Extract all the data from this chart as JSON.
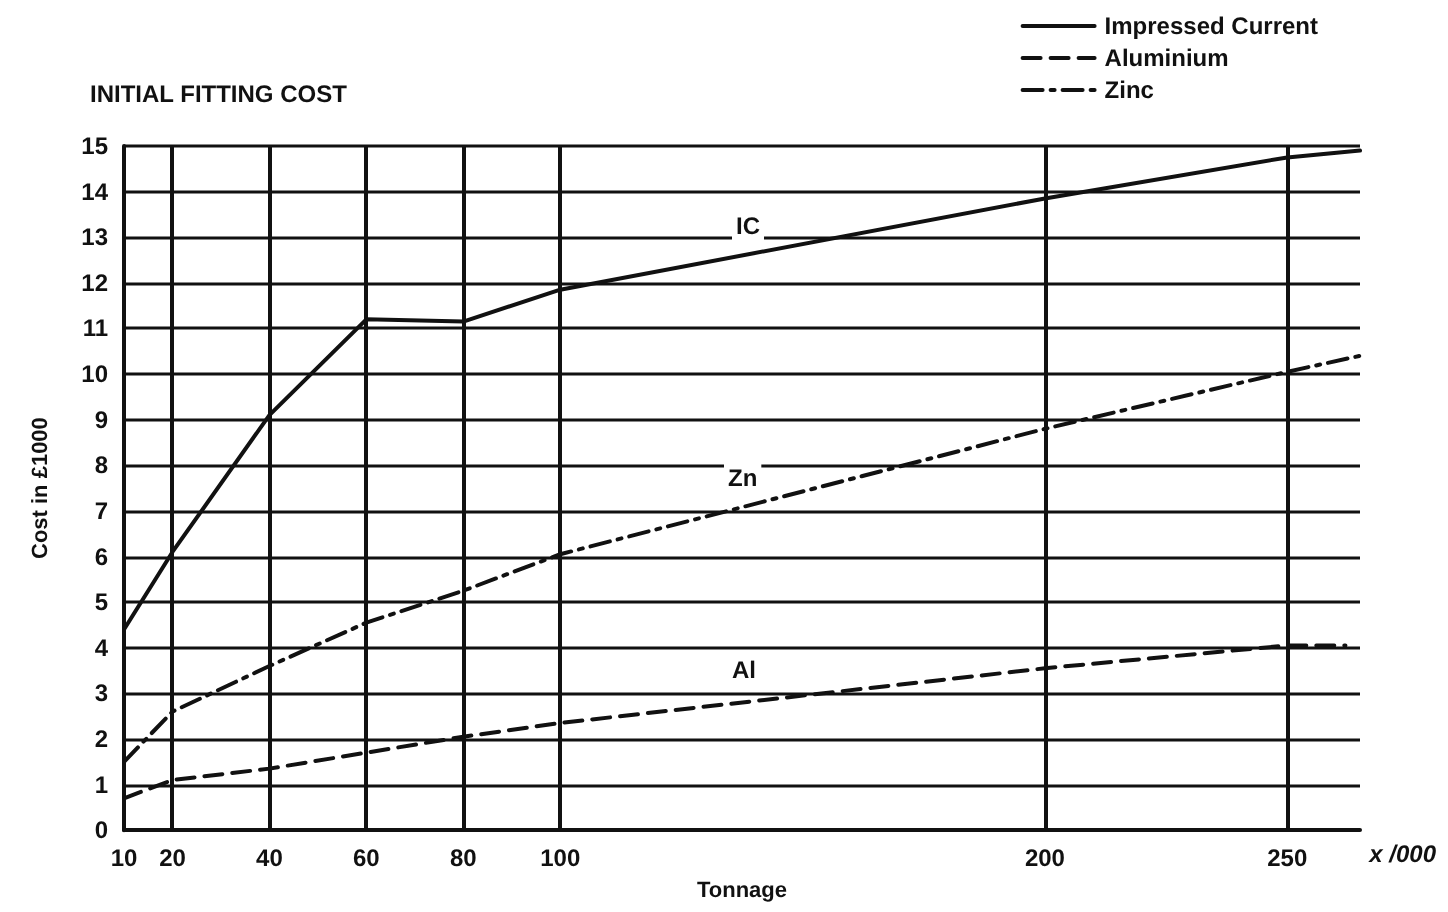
{
  "chart_data": {
    "type": "line",
    "title": "INITIAL FITTING COST",
    "xlabel": "Tonnage",
    "ylabel": "Cost in £1000",
    "series": [
      {
        "name": "Impressed Current",
        "color": "#111111",
        "line_style": "solid",
        "x": [
          10,
          20,
          40,
          60,
          80,
          100,
          200,
          250,
          265
        ],
        "values": [
          4.4,
          6.1,
          9.1,
          11.2,
          11.15,
          11.85,
          13.85,
          14.75,
          14.9
        ]
      },
      {
        "name": "Aluminium",
        "color": "#111111",
        "line_style": "dashed",
        "x": [
          10,
          20,
          40,
          60,
          80,
          100,
          200,
          250,
          262
        ],
        "values": [
          0.7,
          1.1,
          1.35,
          1.7,
          2.05,
          2.35,
          3.55,
          4.05,
          4.05
        ]
      },
      {
        "name": "Zinc",
        "color": "#111111",
        "line_style": "dashdot",
        "x": [
          10,
          20,
          40,
          60,
          80,
          100,
          200,
          250,
          265
        ],
        "values": [
          1.5,
          2.6,
          3.6,
          4.55,
          5.25,
          6.05,
          8.8,
          10.05,
          10.4
        ]
      }
    ],
    "xlim": [
      10,
      265
    ],
    "xticks": [
      10,
      20,
      40,
      60,
      80,
      100,
      200,
      250
    ],
    "ylim": [
      0,
      15
    ],
    "yticks": [
      0,
      1,
      2,
      3,
      4,
      5,
      6,
      7,
      8,
      9,
      10,
      11,
      12,
      13,
      14,
      15
    ],
    "grid": true,
    "legend": "top right",
    "marker": "none",
    "annotations": [
      "IC",
      "Zn",
      "Al",
      "x /000"
    ]
  }
}
